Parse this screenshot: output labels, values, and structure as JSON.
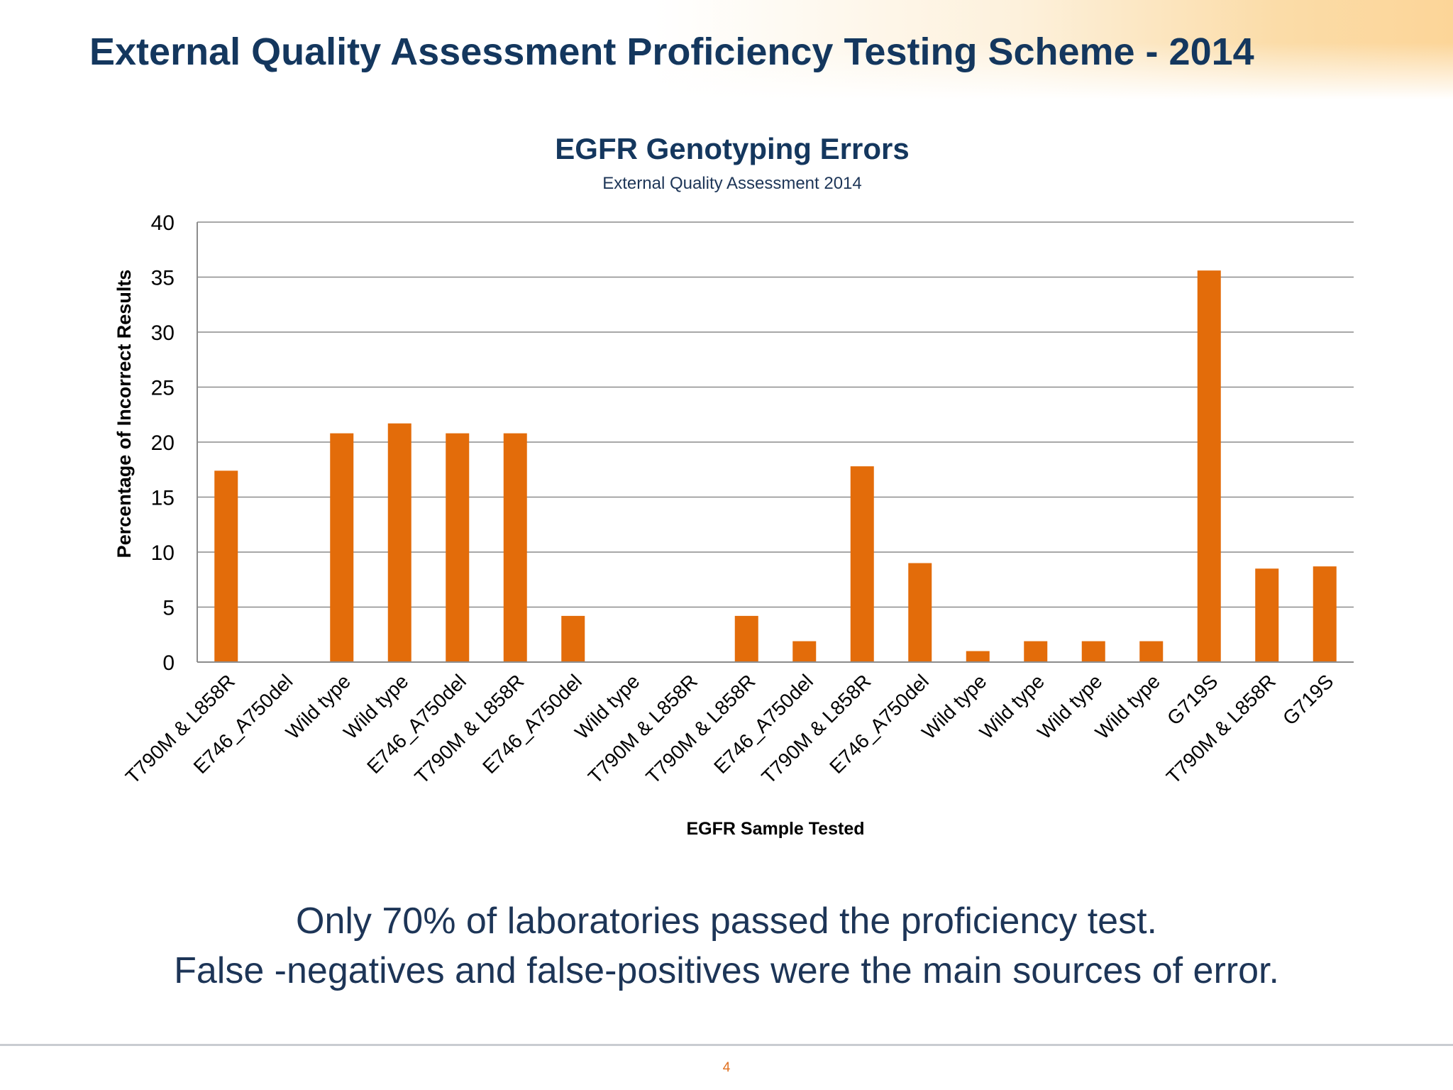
{
  "slide": {
    "title": "External Quality Assessment Proficiency Testing Scheme - 2014",
    "takeaway_line1": "Only 70% of laboratories passed the proficiency test.",
    "takeaway_line2": "False -negatives and false-positives were the main sources of error.",
    "page_number": "4"
  },
  "colors": {
    "bar": "#e36c0a",
    "title_text": "#14375e",
    "body_text": "#1d3557",
    "gridline": "#8c8c8c",
    "header_accent": "#fcd598"
  },
  "chart_data": {
    "type": "bar",
    "title": "EGFR Genotyping Errors",
    "subtitle": "External Quality Assessment 2014",
    "xlabel": "EGFR Sample Tested",
    "ylabel": "Percentage of Incorrect Results",
    "ylim": [
      0,
      40
    ],
    "yticks": [
      0,
      5,
      10,
      15,
      20,
      25,
      30,
      35,
      40
    ],
    "grid": true,
    "legend": "none",
    "categories": [
      "T790M & L858R",
      "E746_A750del",
      "Wild type",
      "Wild type",
      "E746_A750del",
      "T790M & L858R",
      "E746_A750del",
      "Wild type",
      "T790M & L858R",
      "T790M & L858R",
      "E746_A750del",
      "T790M & L858R",
      "E746_A750del",
      "Wild type",
      "Wild type",
      "Wild type",
      "Wild type",
      "G719S",
      "T790M & L858R",
      "G719S"
    ],
    "values": [
      17.4,
      0,
      20.8,
      21.7,
      20.8,
      20.8,
      4.2,
      0,
      0,
      4.2,
      1.9,
      17.8,
      9.0,
      1.0,
      1.9,
      1.9,
      1.9,
      35.6,
      8.5,
      8.7
    ]
  }
}
